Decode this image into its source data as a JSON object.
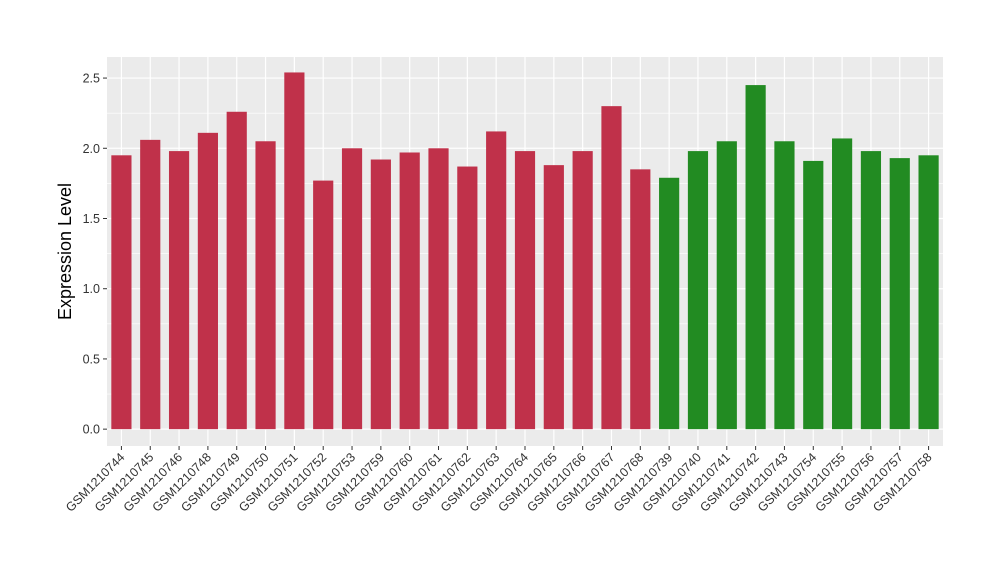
{
  "chart_data": {
    "type": "bar",
    "title": "",
    "xlabel": "",
    "ylabel": "Expression Level",
    "ylim": [
      -0.12,
      2.65
    ],
    "yticks": [
      0.0,
      0.5,
      1.0,
      1.5,
      2.0,
      2.5
    ],
    "ytick_labels": [
      "0.0",
      "0.5",
      "1.0",
      "1.5",
      "2.0",
      "2.5"
    ],
    "grid": true,
    "background": "#ebebeb",
    "grid_color": "#ffffff",
    "group_colors": [
      "#c0314a",
      "#228b22"
    ],
    "categories": [
      "GSM1210744",
      "GSM1210745",
      "GSM1210746",
      "GSM1210748",
      "GSM1210749",
      "GSM1210750",
      "GSM1210751",
      "GSM1210752",
      "GSM1210753",
      "GSM1210759",
      "GSM1210760",
      "GSM1210761",
      "GSM1210762",
      "GSM1210763",
      "GSM1210764",
      "GSM1210765",
      "GSM1210766",
      "GSM1210767",
      "GSM1210768",
      "GSM1210739",
      "GSM1210740",
      "GSM1210741",
      "GSM1210742",
      "GSM1210743",
      "GSM1210754",
      "GSM1210755",
      "GSM1210756",
      "GSM1210757",
      "GSM1210758"
    ],
    "values": [
      1.95,
      2.06,
      1.98,
      2.11,
      2.26,
      2.05,
      2.54,
      1.77,
      2.0,
      1.92,
      1.97,
      2.0,
      1.87,
      2.12,
      1.98,
      1.88,
      1.98,
      2.3,
      1.85,
      1.79,
      1.98,
      2.05,
      2.45,
      2.05,
      1.91,
      2.07,
      1.98,
      1.93,
      1.95
    ],
    "groups": [
      0,
      0,
      0,
      0,
      0,
      0,
      0,
      0,
      0,
      0,
      0,
      0,
      0,
      0,
      0,
      0,
      0,
      0,
      0,
      1,
      1,
      1,
      1,
      1,
      1,
      1,
      1,
      1,
      1
    ]
  }
}
